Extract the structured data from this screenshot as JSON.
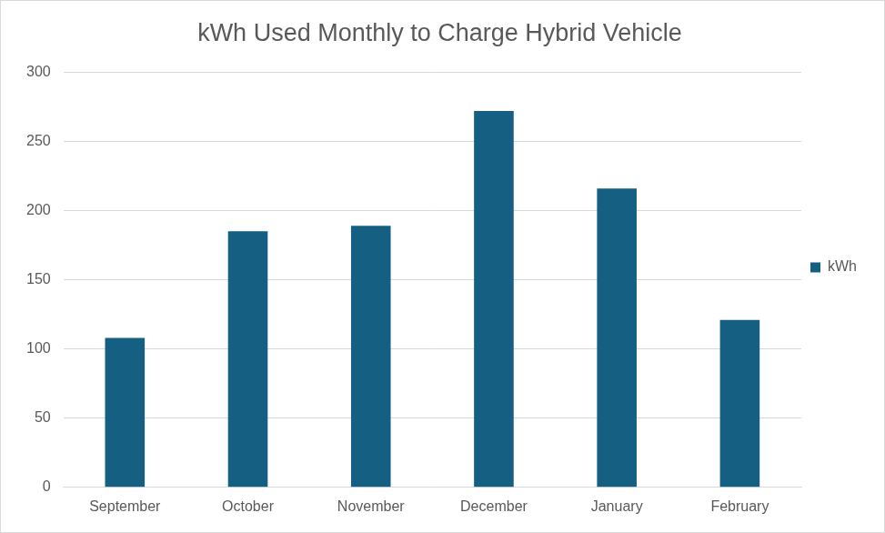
{
  "chart_data": {
    "type": "bar",
    "title": "kWh Used Monthly to Charge Hybrid Vehicle",
    "categories": [
      "September",
      "October",
      "November",
      "December",
      "January",
      "February"
    ],
    "series": [
      {
        "name": "kWh",
        "color": "#156082",
        "values": [
          108,
          185,
          189,
          272,
          216,
          121
        ]
      }
    ],
    "ylim": [
      0,
      300
    ],
    "yticks": [
      0,
      50,
      100,
      150,
      200,
      250,
      300
    ],
    "grid": true,
    "legend": "right"
  }
}
